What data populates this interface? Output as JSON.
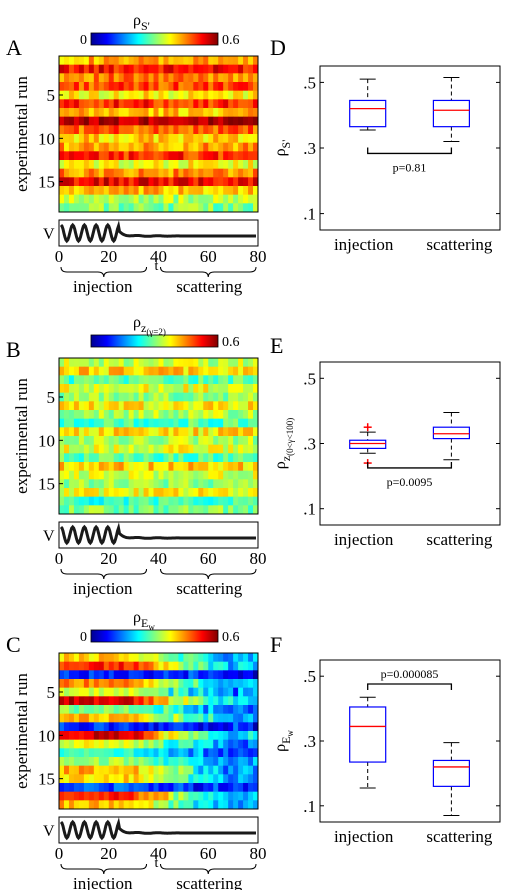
{
  "heat_colors": [
    "#00008f",
    "#0000ff",
    "#0080ff",
    "#00ffff",
    "#80ff80",
    "#ffff00",
    "#ff8000",
    "#ff0000",
    "#800000"
  ],
  "box_colors": {
    "box": "#0000ff",
    "median": "#ff0000",
    "outlier": "#ff0000",
    "whisker": "#000000"
  },
  "chart_data": [
    {
      "type": "heatmap",
      "panel_label": "A",
      "colorbar_label": "ρS'",
      "colorbar_ticks": [
        "0",
        "0.6"
      ],
      "ylabel": "experimental run",
      "y_ticks": [
        "5",
        "10",
        "15"
      ],
      "x_ticks": [
        "0",
        "20",
        "40",
        "60",
        "80"
      ],
      "x_axis_label": "t",
      "trace_label": "V",
      "brace_labels": [
        "injection",
        "scattering"
      ],
      "clim": [
        0,
        0.6
      ],
      "row_means": [
        0.42,
        0.52,
        0.45,
        0.48,
        0.38,
        0.5,
        0.41,
        0.58,
        0.47,
        0.4,
        0.43,
        0.5,
        0.37,
        0.44,
        0.53,
        0.41,
        0.33,
        0.3
      ],
      "time_profile": "flat"
    },
    {
      "type": "heatmap",
      "panel_label": "B",
      "colorbar_label": "ρz(γ=2)",
      "colorbar_ticks": [
        "0.6"
      ],
      "ylabel": "experimental run",
      "y_ticks": [
        "5",
        "10",
        "15"
      ],
      "x_ticks": [
        "0",
        "20",
        "40",
        "60",
        "80"
      ],
      "x_axis_label": "",
      "trace_label": "V",
      "brace_labels": [
        "injection",
        "scattering"
      ],
      "clim": [
        0,
        0.6
      ],
      "row_means": [
        0.34,
        0.4,
        0.27,
        0.36,
        0.31,
        0.38,
        0.33,
        0.27,
        0.39,
        0.33,
        0.36,
        0.28,
        0.4,
        0.35,
        0.31,
        0.37,
        0.26,
        0.3
      ],
      "time_profile": "flat"
    },
    {
      "type": "heatmap",
      "panel_label": "C",
      "colorbar_label": "ρEw",
      "colorbar_ticks": [
        "0",
        "0.6"
      ],
      "ylabel": "experimental run",
      "y_ticks": [
        "5",
        "10",
        "15"
      ],
      "x_ticks": [
        "0",
        "20",
        "40",
        "60",
        "80"
      ],
      "x_axis_label": "t",
      "trace_label": "V",
      "brace_labels": [
        "injection",
        "scattering"
      ],
      "clim": [
        0,
        0.6
      ],
      "row_means": [
        0.4,
        0.5,
        0.1,
        0.45,
        0.35,
        0.55,
        0.3,
        0.42,
        0.1,
        0.55,
        0.36,
        0.25,
        0.32,
        0.42,
        0.4,
        0.12,
        0.5,
        0.42
      ],
      "time_profile": "decay"
    },
    {
      "type": "box",
      "panel_label": "D",
      "ylabel": "ρS'",
      "y_ticks": [
        ".1",
        ".3",
        ".5"
      ],
      "ylim": [
        0.05,
        0.55
      ],
      "categories": [
        "injection",
        "scattering"
      ],
      "boxes": [
        {
          "whisker_low": 0.355,
          "q1": 0.365,
          "median": 0.42,
          "q3": 0.445,
          "whisker_high": 0.51,
          "outliers": []
        },
        {
          "whisker_low": 0.32,
          "q1": 0.365,
          "median": 0.415,
          "q3": 0.445,
          "whisker_high": 0.515,
          "outliers": []
        }
      ],
      "p_value_label": "p=0.81",
      "bracket": "below"
    },
    {
      "type": "box",
      "panel_label": "E",
      "ylabel": "ρz(0<γ<100)",
      "y_ticks": [
        ".1",
        ".3",
        ".5"
      ],
      "ylim": [
        0.05,
        0.55
      ],
      "categories": [
        "injection",
        "scattering"
      ],
      "boxes": [
        {
          "whisker_low": 0.27,
          "q1": 0.285,
          "median": 0.3,
          "q3": 0.31,
          "whisker_high": 0.335,
          "outliers": [
            0.35,
            0.24
          ]
        },
        {
          "whisker_low": 0.25,
          "q1": 0.315,
          "median": 0.33,
          "q3": 0.35,
          "whisker_high": 0.395,
          "outliers": []
        }
      ],
      "p_value_label": "p=0.0095",
      "bracket": "below"
    },
    {
      "type": "box",
      "panel_label": "F",
      "ylabel": "ρEw",
      "y_ticks": [
        ".1",
        ".3",
        ".5"
      ],
      "ylim": [
        0.05,
        0.55
      ],
      "categories": [
        "injection",
        "scattering"
      ],
      "boxes": [
        {
          "whisker_low": 0.155,
          "q1": 0.235,
          "median": 0.345,
          "q3": 0.405,
          "whisker_high": 0.435,
          "outliers": []
        },
        {
          "whisker_low": 0.07,
          "q1": 0.16,
          "median": 0.22,
          "q3": 0.24,
          "whisker_high": 0.295,
          "outliers": []
        }
      ],
      "p_value_label": "p=0.000085",
      "bracket": "above"
    }
  ]
}
